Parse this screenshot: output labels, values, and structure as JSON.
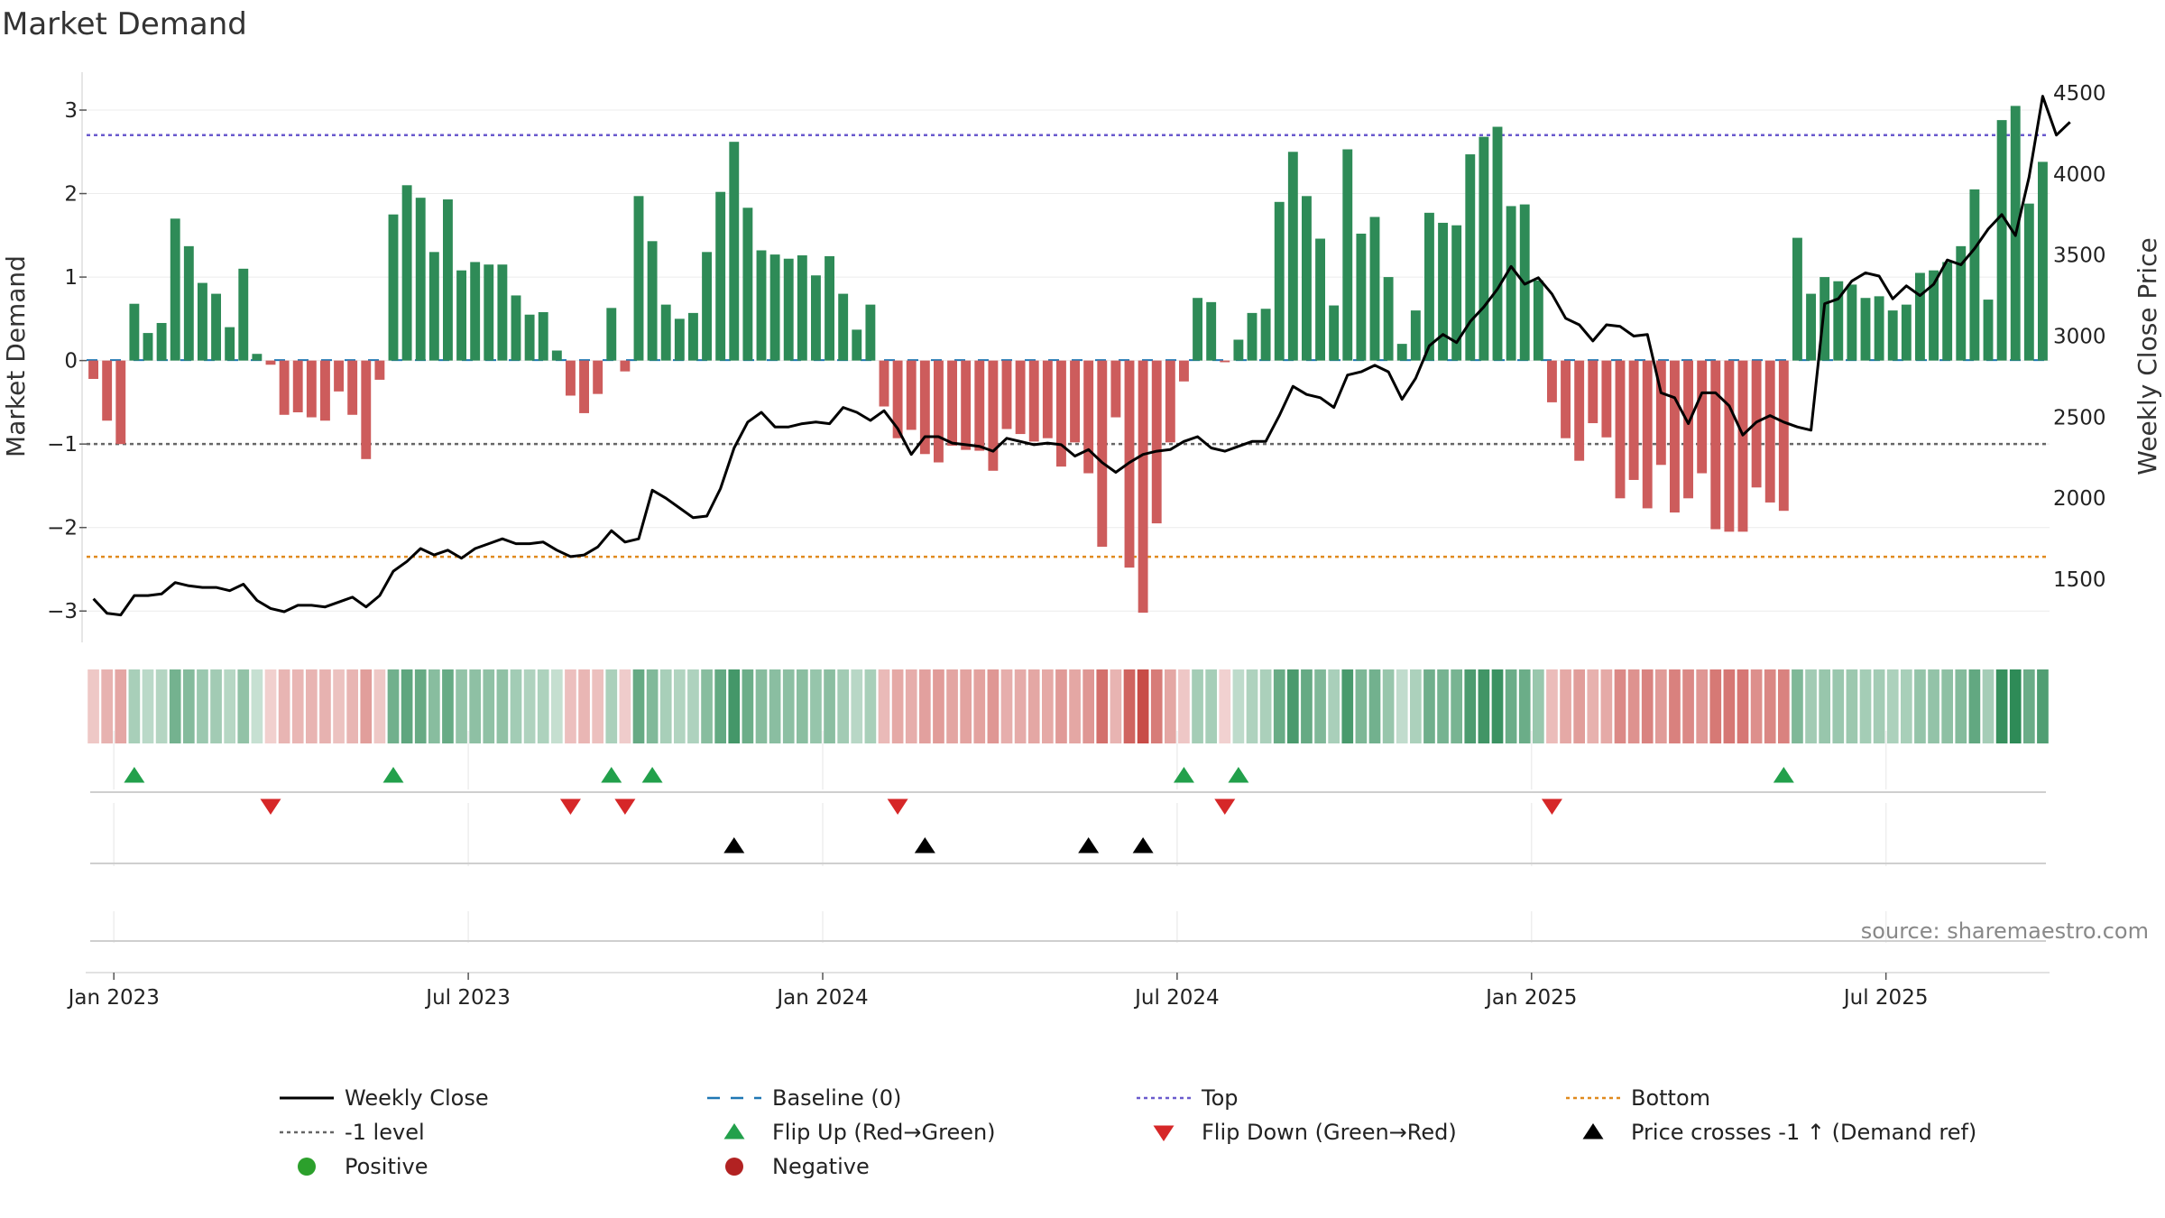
{
  "chart_data": {
    "type": "bar",
    "title": "Market Demand",
    "ylabel": "Market Demand",
    "ylabel_right": "Weekly Close Price",
    "ylim": [
      -3.3,
      3.4
    ],
    "ylim_right": [
      1150,
      4600
    ],
    "yticks": [
      {
        "v": 3,
        "label": "3"
      },
      {
        "v": 2,
        "label": "2"
      },
      {
        "v": 1,
        "label": "1"
      },
      {
        "v": 0,
        "label": "0"
      },
      {
        "v": -1,
        "label": "−1"
      },
      {
        "v": -2,
        "label": "−2"
      },
      {
        "v": -3,
        "label": "−3"
      }
    ],
    "yticks_right": [
      {
        "v": 4500,
        "label": "4500"
      },
      {
        "v": 4000,
        "label": "4000"
      },
      {
        "v": 3500,
        "label": "3500"
      },
      {
        "v": 3000,
        "label": "3000"
      },
      {
        "v": 2500,
        "label": "2500"
      },
      {
        "v": 2000,
        "label": "2000"
      },
      {
        "v": 1500,
        "label": "1500"
      }
    ],
    "xticks": [
      {
        "i": 1.5,
        "label": "Jan 2023"
      },
      {
        "i": 27.5,
        "label": "Jul 2023"
      },
      {
        "i": 53.5,
        "label": "Jan 2024"
      },
      {
        "i": 79.5,
        "label": "Jul 2024"
      },
      {
        "i": 105.5,
        "label": "Jan 2025"
      },
      {
        "i": 131.5,
        "label": "Jul 2025"
      }
    ],
    "reference_lines": {
      "top": 2.7,
      "minus_one": -1,
      "bottom": -2.35,
      "baseline": 0
    },
    "demand": [
      -0.22,
      -0.72,
      -1.0,
      0.68,
      0.33,
      0.45,
      1.7,
      1.37,
      0.93,
      0.8,
      0.4,
      1.1,
      0.08,
      -0.05,
      -0.65,
      -0.62,
      -0.68,
      -0.72,
      -0.37,
      -0.65,
      -1.18,
      -0.23,
      1.75,
      2.1,
      1.95,
      1.3,
      1.93,
      1.08,
      1.18,
      1.15,
      1.15,
      0.78,
      0.55,
      0.58,
      0.12,
      -0.42,
      -0.63,
      -0.4,
      0.63,
      -0.13,
      1.97,
      1.43,
      0.67,
      0.5,
      0.57,
      1.3,
      2.02,
      2.62,
      1.83,
      1.32,
      1.27,
      1.22,
      1.26,
      1.02,
      1.25,
      0.8,
      0.37,
      0.67,
      -0.55,
      -0.93,
      -0.83,
      -1.12,
      -1.22,
      -1.02,
      -1.07,
      -1.08,
      -1.32,
      -0.82,
      -0.88,
      -0.97,
      -0.93,
      -1.27,
      -0.98,
      -1.35,
      -2.23,
      -0.68,
      -2.48,
      -3.02,
      -1.95,
      -0.98,
      -0.25,
      0.75,
      0.7,
      -0.02,
      0.25,
      0.57,
      0.62,
      1.9,
      2.5,
      1.97,
      1.46,
      0.66,
      2.53,
      1.52,
      1.72,
      1.0,
      0.2,
      0.6,
      1.77,
      1.65,
      1.62,
      2.47,
      2.68,
      2.8,
      1.85,
      1.87,
      0.96,
      -0.5,
      -0.93,
      -1.2,
      -0.75,
      -0.92,
      -1.65,
      -1.43,
      -1.77,
      -1.25,
      -1.82,
      -1.65,
      -1.35,
      -2.02,
      -2.05,
      -2.05,
      -1.52,
      -1.7,
      -1.8,
      1.47,
      0.8,
      1.0,
      0.95,
      0.91,
      0.75,
      0.77,
      0.6,
      0.67,
      1.05,
      1.08,
      1.18,
      1.37,
      2.05,
      0.73,
      2.88,
      3.05,
      1.88,
      2.38
    ],
    "close": [
      1380,
      1290,
      1280,
      1400,
      1400,
      1410,
      1480,
      1460,
      1450,
      1450,
      1430,
      1470,
      1370,
      1320,
      1300,
      1340,
      1340,
      1330,
      1360,
      1390,
      1330,
      1400,
      1550,
      1610,
      1690,
      1650,
      1680,
      1630,
      1690,
      1720,
      1750,
      1720,
      1720,
      1730,
      1680,
      1640,
      1650,
      1700,
      1800,
      1730,
      1750,
      2050,
      2000,
      1940,
      1880,
      1890,
      2060,
      2310,
      2470,
      2530,
      2440,
      2440,
      2460,
      2470,
      2460,
      2560,
      2530,
      2480,
      2540,
      2430,
      2270,
      2380,
      2380,
      2340,
      2330,
      2320,
      2290,
      2370,
      2350,
      2330,
      2340,
      2330,
      2260,
      2300,
      2220,
      2160,
      2220,
      2270,
      2290,
      2300,
      2350,
      2380,
      2310,
      2290,
      2320,
      2350,
      2350,
      2510,
      2690,
      2640,
      2620,
      2560,
      2760,
      2780,
      2820,
      2780,
      2610,
      2740,
      2940,
      3010,
      2960,
      3090,
      3180,
      3290,
      3430,
      3320,
      3360,
      3260,
      3110,
      3070,
      2970,
      3070,
      3060,
      3000,
      3010,
      2650,
      2620,
      2460,
      2650,
      2650,
      2570,
      2390,
      2470,
      2510,
      2470,
      2440,
      2420,
      3200,
      3230,
      3340,
      3390,
      3370,
      3230,
      3310,
      3250,
      3320,
      3470,
      3440,
      3540,
      3660,
      3750,
      3620,
      3980,
      4480,
      4240,
      4320
    ],
    "flip_up": [
      3,
      22,
      38,
      41,
      80,
      84,
      124
    ],
    "flip_down": [
      13,
      35,
      39,
      59,
      83,
      107
    ],
    "price_cross": [
      47,
      61,
      73,
      77
    ],
    "source_note": "source: sharemaestro.com",
    "legend": [
      {
        "label": "Weekly Close",
        "kind": "line"
      },
      {
        "label": "Baseline (0)",
        "kind": "dash-blue"
      },
      {
        "label": "Top",
        "kind": "dot-purple"
      },
      {
        "label": "Bottom",
        "kind": "dot-orange"
      },
      {
        "label": "-1 level",
        "kind": "dot-grey"
      },
      {
        "label": "Flip Up (Red→Green)",
        "kind": "tri-up-green"
      },
      {
        "label": "Flip Down (Green→Red)",
        "kind": "tri-down-red"
      },
      {
        "label": "Price crosses -1 ↑ (Demand ref)",
        "kind": "tri-up-black"
      },
      {
        "label": "Positive",
        "kind": "dot-green"
      },
      {
        "label": "Negative",
        "kind": "dot-red"
      }
    ],
    "colors": {
      "positive": "#2e8b57",
      "negative": "#cd5c5c",
      "close": "#000000",
      "top": "#6a5acd",
      "bottom": "#e08a1e",
      "minus_one": "#666666",
      "baseline": "#1f77b4",
      "flip_up": "#22a04b",
      "flip_down": "#d62728",
      "positive_dot": "#2ca02c",
      "negative_dot": "#b22222"
    }
  }
}
